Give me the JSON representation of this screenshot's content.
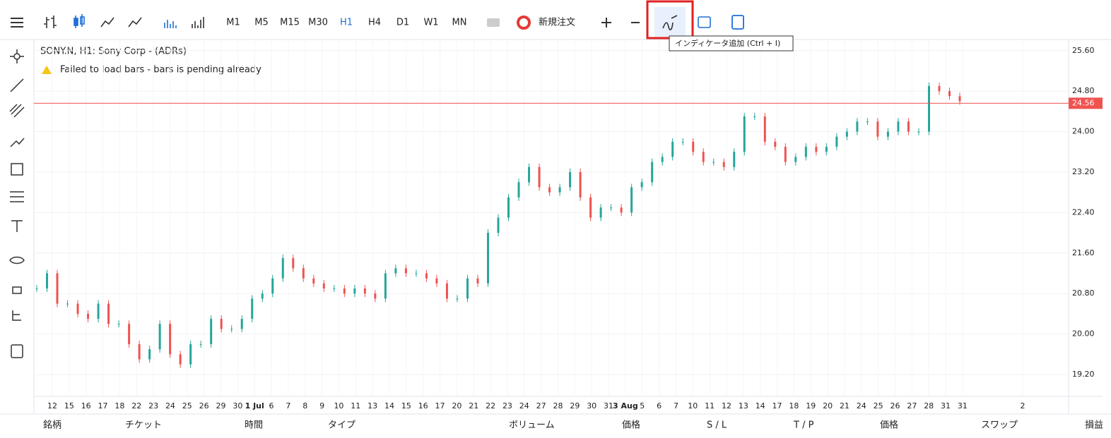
{
  "toolbar": {
    "timeframes": [
      "M1",
      "M5",
      "M15",
      "M30",
      "H1",
      "H4",
      "D1",
      "W1",
      "MN"
    ],
    "active_timeframe": "H1",
    "new_order": "新規注文",
    "tooltip": "インディケータ追加 (Ctrl + I)"
  },
  "chart": {
    "title": "SONY.N, H1: Sony Corp - (ADRs)",
    "warning": "Failed to load bars - bars is pending already",
    "ylim": [
      19.04,
      25.78
    ],
    "yticks": [
      {
        "value": 25.6,
        "label": "25.60"
      },
      {
        "value": 24.8,
        "label": "24.80"
      },
      {
        "value": 24,
        "label": "24.00"
      },
      {
        "value": 23.2,
        "label": "23.20"
      },
      {
        "value": 22.4,
        "label": "22.40"
      },
      {
        "value": 21.6,
        "label": "21.60"
      },
      {
        "value": 20.8,
        "label": "20.80"
      },
      {
        "value": 20,
        "label": "20.00"
      },
      {
        "value": 19.2,
        "label": "19.20"
      }
    ],
    "current_price": {
      "value": 24.56,
      "label": "24.56"
    },
    "xlabels": [
      "12",
      "15",
      "16",
      "17",
      "18",
      "22",
      "23",
      "24",
      "25",
      "26",
      "29",
      "30",
      "1 Jul",
      "6",
      "7",
      "8",
      "9",
      "10",
      "11",
      "13",
      "14",
      "15",
      "16",
      "17",
      "20",
      "21",
      "22",
      "23",
      "24",
      "27",
      "28",
      "29",
      "30",
      "31",
      "3 Aug",
      "5",
      "6",
      "7",
      "10",
      "11",
      "12",
      "13",
      "14",
      "17",
      "18",
      "19",
      "20",
      "21",
      "24",
      "25",
      "26",
      "27",
      "28",
      "31",
      "31",
      "2"
    ],
    "closes": [
      20.9,
      21.2,
      20.6,
      20.6,
      20.4,
      20.3,
      20.6,
      20.2,
      20.2,
      19.8,
      19.5,
      19.7,
      20.2,
      19.6,
      19.4,
      19.8,
      19.8,
      20.3,
      20.1,
      20.1,
      20.3,
      20.7,
      20.8,
      21.1,
      21.5,
      21.3,
      21.1,
      21.0,
      20.9,
      20.9,
      20.8,
      20.9,
      20.8,
      20.7,
      21.2,
      21.3,
      21.2,
      21.2,
      21.1,
      21.0,
      20.7,
      20.7,
      21.1,
      21.0,
      22.0,
      22.3,
      22.7,
      23.0,
      23.3,
      22.9,
      22.8,
      22.9,
      23.2,
      22.7,
      22.3,
      22.5,
      22.5,
      22.4,
      22.9,
      23.0,
      23.4,
      23.5,
      23.8,
      23.8,
      23.6,
      23.4,
      23.4,
      23.3,
      23.6,
      24.3,
      24.3,
      23.8,
      23.7,
      23.4,
      23.5,
      23.7,
      23.6,
      23.7,
      23.9,
      24.0,
      24.2,
      24.2,
      23.9,
      24.0,
      24.2,
      24.0,
      24.0,
      24.9,
      24.8,
      24.7,
      24.6
    ]
  },
  "positions_header": [
    "銘柄",
    "チケット",
    "時間",
    "タイプ",
    "ボリューム",
    "価格",
    "S / L",
    "T / P",
    "価格",
    "スワップ",
    "損益"
  ]
}
